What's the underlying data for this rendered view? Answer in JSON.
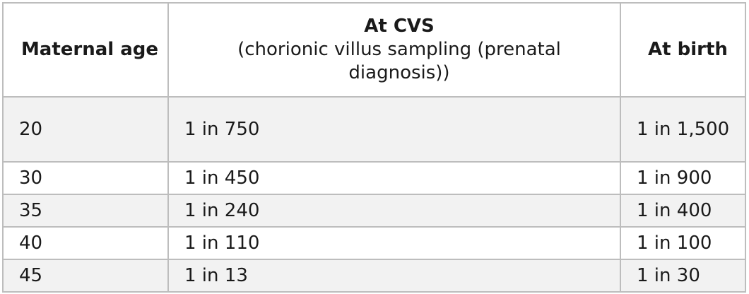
{
  "table": {
    "headers": {
      "maternal_age": "Maternal age",
      "at_cvs_title": "At CVS",
      "at_cvs_sub": "(chorionic villus sampling (prenatal diagnosis))",
      "at_birth": "At birth"
    },
    "rows": [
      {
        "age": "20",
        "cvs": "1 in 750",
        "birth": "1 in 1,500"
      },
      {
        "age": "30",
        "cvs": "1 in 450",
        "birth": "1 in 900"
      },
      {
        "age": "35",
        "cvs": "1 in 240",
        "birth": "1 in 400"
      },
      {
        "age": "40",
        "cvs": "1 in 110",
        "birth": "1 in 100"
      },
      {
        "age": "45",
        "cvs": "1 in 13",
        "birth": "1 in 30"
      }
    ]
  }
}
